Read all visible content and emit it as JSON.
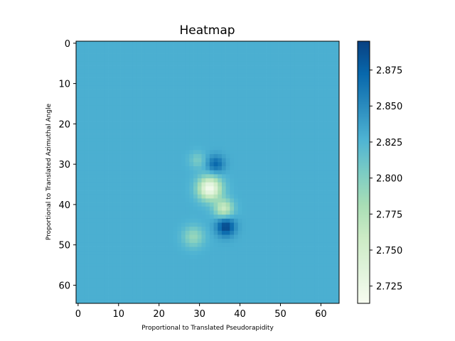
{
  "chart_data": {
    "type": "heatmap",
    "title": "Heatmap",
    "xlabel": "Proportional to Translated Pseudorapidity",
    "ylabel": "Proportional to Translated Azimuthal Angle",
    "grid_size": [
      65,
      65
    ],
    "x_range": [
      -0.5,
      64.5
    ],
    "y_range": [
      64.5,
      -0.5
    ],
    "x_ticks": [
      0,
      10,
      20,
      30,
      40,
      50,
      60
    ],
    "y_ticks": [
      0,
      10,
      20,
      30,
      40,
      50,
      60
    ],
    "colormap": "GnBu",
    "colormap_stops": [
      "#f7fcf0",
      "#e0f3db",
      "#ccebc5",
      "#a8ddb5",
      "#7bccc4",
      "#4eb3d3",
      "#2b8cbe",
      "#0868ac",
      "#084081"
    ],
    "vmin": 2.713,
    "vmax": 2.895,
    "colorbar_ticks": [
      "2.725",
      "2.750",
      "2.775",
      "2.800",
      "2.825",
      "2.850",
      "2.875"
    ],
    "background_value": 2.829,
    "features": [
      {
        "x": 32.5,
        "y": 36,
        "value": 2.716,
        "sigma": 2.0
      },
      {
        "x": 36,
        "y": 41,
        "value": 2.76,
        "sigma": 1.6
      },
      {
        "x": 28.5,
        "y": 48,
        "value": 2.79,
        "sigma": 1.8
      },
      {
        "x": 29.5,
        "y": 29,
        "value": 2.805,
        "sigma": 1.4
      },
      {
        "x": 34,
        "y": 30,
        "value": 2.872,
        "sigma": 1.5
      },
      {
        "x": 36.5,
        "y": 45.5,
        "value": 2.893,
        "sigma": 1.6
      }
    ]
  }
}
